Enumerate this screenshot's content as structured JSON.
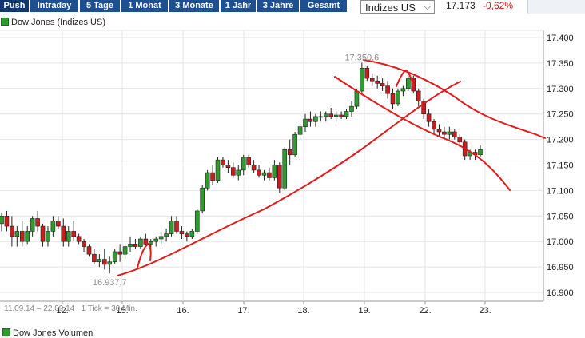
{
  "toolbar": {
    "tabs": [
      "Push",
      "Intraday",
      "5 Tage",
      "1 Monat",
      "3 Monate",
      "1 Jahr",
      "3 Jahre",
      "Gesamt"
    ],
    "select_value": "Indizes US",
    "price": "17.173",
    "change": "-0,62%"
  },
  "legend": {
    "label": "Dow Jones (Indizes US)"
  },
  "footer": {
    "range": "11.09.14 – 22.09.14",
    "tick": "1 Tick = 30 Min.",
    "volume_label": "Dow Jones Volumen"
  },
  "colors": {
    "up": "#2e9b2e",
    "down": "#c81e1e",
    "trend": "#e01b1b",
    "tab": "#1d4f91"
  },
  "chart_data": {
    "type": "candlestick",
    "title": "Dow Jones (Indizes US)",
    "ylim": [
      16880,
      17420
    ],
    "yticks": [
      "17.400",
      "17.350",
      "17.300",
      "17.250",
      "17.200",
      "17.150",
      "17.100",
      "17.050",
      "17.000",
      "16.950",
      "16.900"
    ],
    "ytick_values": [
      17400,
      17350,
      17300,
      17250,
      17200,
      17150,
      17100,
      17050,
      17000,
      16950,
      16900
    ],
    "xticks": [
      "12.",
      "15.",
      "16.",
      "17.",
      "18.",
      "19.",
      "22.",
      "23."
    ],
    "grid": true,
    "annotations": [
      {
        "text": "17.350,6",
        "value": 17350.6,
        "type": "high"
      },
      {
        "text": "16.937,7",
        "value": 16937.7,
        "type": "low"
      }
    ],
    "candles": [
      [
        17035,
        17055,
        17020,
        17050
      ],
      [
        17050,
        17060,
        17020,
        17030
      ],
      [
        17030,
        17050,
        16990,
        17010
      ],
      [
        17010,
        17030,
        16990,
        17020
      ],
      [
        17020,
        17040,
        16990,
        17000
      ],
      [
        17000,
        17030,
        16995,
        17020
      ],
      [
        17020,
        17050,
        17010,
        17045
      ],
      [
        17045,
        17060,
        17020,
        17030
      ],
      [
        17030,
        17035,
        16990,
        17000
      ],
      [
        17000,
        17030,
        16990,
        17020
      ],
      [
        17020,
        17050,
        17010,
        17040
      ],
      [
        17040,
        17050,
        17025,
        17030
      ],
      [
        17030,
        17045,
        16990,
        17000
      ],
      [
        17000,
        17030,
        16990,
        17020
      ],
      [
        17020,
        17040,
        17000,
        17010
      ],
      [
        17010,
        17015,
        16995,
        17000
      ],
      [
        17000,
        17005,
        16980,
        16990
      ],
      [
        16990,
        16995,
        16970,
        16975
      ],
      [
        16975,
        16985,
        16955,
        16960
      ],
      [
        16960,
        16975,
        16950,
        16965
      ],
      [
        16965,
        16985,
        16945,
        16955
      ],
      [
        16955,
        16970,
        16937.7,
        16960
      ],
      [
        16960,
        16985,
        16955,
        16980
      ],
      [
        16980,
        16995,
        16960,
        16975
      ],
      [
        16975,
        16995,
        16965,
        16990
      ],
      [
        16990,
        17010,
        16980,
        16995
      ],
      [
        16995,
        17005,
        16985,
        16990
      ],
      [
        16990,
        17010,
        16985,
        17005
      ],
      [
        17005,
        17015,
        16990,
        16995
      ],
      [
        16995,
        17005,
        16985,
        17000
      ],
      [
        17000,
        17010,
        16990,
        17005
      ],
      [
        17005,
        17020,
        16995,
        17010
      ],
      [
        17010,
        17025,
        17000,
        17015
      ],
      [
        17015,
        17050,
        17010,
        17040
      ],
      [
        17040,
        17050,
        17015,
        17020
      ],
      [
        17020,
        17030,
        17005,
        17015
      ],
      [
        17015,
        17020,
        17000,
        17010
      ],
      [
        17010,
        17025,
        17005,
        17020
      ],
      [
        17020,
        17065,
        17015,
        17060
      ],
      [
        17060,
        17110,
        17055,
        17105
      ],
      [
        17105,
        17140,
        17100,
        17135
      ],
      [
        17135,
        17150,
        17110,
        17120
      ],
      [
        17120,
        17165,
        17115,
        17160
      ],
      [
        17160,
        17165,
        17145,
        17150
      ],
      [
        17150,
        17160,
        17135,
        17145
      ],
      [
        17145,
        17155,
        17125,
        17130
      ],
      [
        17130,
        17150,
        17120,
        17140
      ],
      [
        17140,
        17170,
        17130,
        17165
      ],
      [
        17165,
        17170,
        17145,
        17150
      ],
      [
        17150,
        17160,
        17135,
        17140
      ],
      [
        17140,
        17150,
        17125,
        17130
      ],
      [
        17130,
        17140,
        17120,
        17135
      ],
      [
        17135,
        17145,
        17120,
        17125
      ],
      [
        17125,
        17160,
        17120,
        17150
      ],
      [
        17150,
        17155,
        17095,
        17105
      ],
      [
        17105,
        17185,
        17100,
        17180
      ],
      [
        17180,
        17200,
        17150,
        17170
      ],
      [
        17170,
        17215,
        17165,
        17210
      ],
      [
        17210,
        17235,
        17200,
        17225
      ],
      [
        17225,
        17250,
        17215,
        17240
      ],
      [
        17240,
        17255,
        17225,
        17235
      ],
      [
        17235,
        17250,
        17225,
        17245
      ],
      [
        17245,
        17255,
        17235,
        17245
      ],
      [
        17245,
        17255,
        17235,
        17250
      ],
      [
        17250,
        17262,
        17240,
        17245
      ],
      [
        17245,
        17255,
        17235,
        17248
      ],
      [
        17248,
        17255,
        17240,
        17245
      ],
      [
        17245,
        17260,
        17240,
        17255
      ],
      [
        17255,
        17275,
        17245,
        17265
      ],
      [
        17265,
        17300,
        17260,
        17295
      ],
      [
        17295,
        17350.6,
        17290,
        17340
      ],
      [
        17340,
        17345,
        17315,
        17320
      ],
      [
        17320,
        17330,
        17305,
        17315
      ],
      [
        17315,
        17325,
        17300,
        17310
      ],
      [
        17310,
        17320,
        17295,
        17305
      ],
      [
        17305,
        17315,
        17280,
        17290
      ],
      [
        17290,
        17300,
        17260,
        17270
      ],
      [
        17270,
        17300,
        17265,
        17295
      ],
      [
        17295,
        17305,
        17285,
        17300
      ],
      [
        17300,
        17325,
        17295,
        17320
      ],
      [
        17320,
        17325,
        17290,
        17295
      ],
      [
        17295,
        17300,
        17265,
        17275
      ],
      [
        17275,
        17280,
        17240,
        17250
      ],
      [
        17250,
        17260,
        17225,
        17235
      ],
      [
        17235,
        17240,
        17210,
        17220
      ],
      [
        17220,
        17230,
        17205,
        17215
      ],
      [
        17215,
        17225,
        17200,
        17210
      ],
      [
        17210,
        17225,
        17200,
        17215
      ],
      [
        17215,
        17220,
        17200,
        17205
      ],
      [
        17205,
        17210,
        17185,
        17195
      ],
      [
        17195,
        17200,
        17160,
        17168
      ],
      [
        17168,
        17180,
        17160,
        17175
      ],
      [
        17175,
        17180,
        17160,
        17170
      ],
      [
        17170,
        17190,
        17165,
        17180
      ]
    ],
    "trendlines": [
      {
        "name": "support",
        "points": [
          [
            0,
            16930
          ],
          [
            1,
            17290
          ]
        ]
      },
      {
        "name": "channel-top",
        "points": [
          [
            0,
            17350
          ],
          [
            1,
            17200
          ]
        ]
      },
      {
        "name": "channel-bottom",
        "points": [
          [
            0,
            17320
          ],
          [
            1,
            17100
          ]
        ]
      }
    ]
  }
}
